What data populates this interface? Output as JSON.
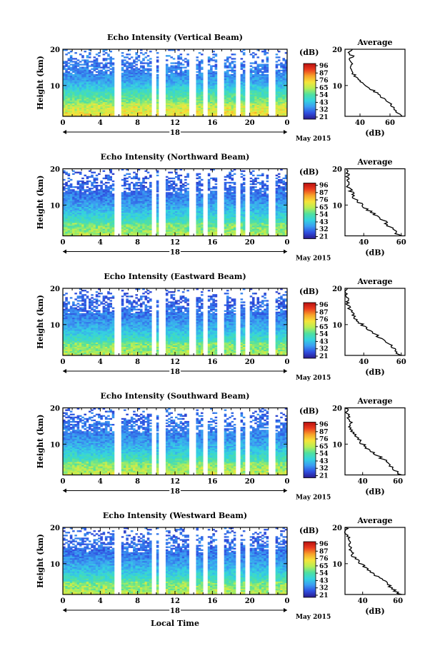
{
  "figure": {
    "date_label": "May 2015",
    "xlabel": "Local Time",
    "ylabel": "Height (km)",
    "colorbar_unit": "(dB)",
    "colorbar_ticks": [
      "96",
      "87",
      "76",
      "65",
      "54",
      "43",
      "32",
      "21"
    ],
    "colorbar_range": [
      21,
      96
    ],
    "average_title": "Average",
    "average_xlabel": "(dB)",
    "gap_hours": [
      5.9,
      9.8,
      10.6,
      13.9,
      15.3,
      16.9,
      18.7,
      19.8,
      22.4
    ],
    "colors": {
      "cmap": [
        "#2a1a8c",
        "#2f4fe0",
        "#3a9cf2",
        "#34d3e0",
        "#4fe0a0",
        "#b6ee55",
        "#f6e43a",
        "#f7a22a",
        "#ea3b1e",
        "#b80f10"
      ]
    }
  },
  "chart_data": [
    {
      "type": "heatmap",
      "title": "Echo Intensity (Vertical Beam)",
      "day_label": "18",
      "x_ticks": [
        "0",
        "4",
        "8",
        "12",
        "16",
        "20",
        "0"
      ],
      "y_ticks": [
        "20",
        "10"
      ],
      "xlim": [
        0,
        24
      ],
      "ylim": [
        1.5,
        20
      ],
      "profile_levels_km": [
        1.5,
        2,
        3,
        4,
        5,
        6,
        7,
        8,
        9,
        10,
        11,
        12,
        13,
        14,
        15,
        16,
        17,
        18,
        19,
        20
      ],
      "profile_db": [
        68,
        66,
        64,
        62,
        60,
        57,
        54,
        51,
        47,
        43,
        40,
        38,
        36,
        35,
        34,
        34,
        33,
        35,
        33,
        34
      ],
      "avg_x_ticks": [
        "40",
        "60"
      ],
      "avg_xlim": [
        30,
        70
      ]
    },
    {
      "type": "heatmap",
      "title": "Echo Intensity (Northward Beam)",
      "day_label": "18",
      "x_ticks": [
        "0",
        "4",
        "8",
        "12",
        "16",
        "20",
        "0"
      ],
      "y_ticks": [
        "20",
        "10"
      ],
      "xlim": [
        0,
        24
      ],
      "ylim": [
        1.5,
        20
      ],
      "profile_levels_km": [
        1.5,
        2,
        3,
        4,
        5,
        6,
        7,
        8,
        9,
        10,
        11,
        12,
        13,
        14,
        15,
        16,
        17,
        18,
        19,
        20
      ],
      "profile_db": [
        60,
        58,
        56,
        54,
        52,
        50,
        47,
        44,
        41,
        39,
        37,
        35,
        34,
        33,
        32,
        31,
        31,
        32,
        31,
        30
      ],
      "avg_x_ticks": [
        "40",
        "60"
      ],
      "avg_xlim": [
        30,
        62
      ]
    },
    {
      "type": "heatmap",
      "title": "Echo Intensity (Eastward Beam)",
      "day_label": "18",
      "x_ticks": [
        "0",
        "4",
        "8",
        "12",
        "16",
        "20",
        "0"
      ],
      "y_ticks": [
        "20",
        "10"
      ],
      "xlim": [
        0,
        24
      ],
      "ylim": [
        1.5,
        20
      ],
      "profile_levels_km": [
        1.5,
        2,
        3,
        4,
        5,
        6,
        7,
        8,
        9,
        10,
        11,
        12,
        13,
        14,
        15,
        16,
        17,
        18,
        19,
        20
      ],
      "profile_db": [
        60,
        58,
        56,
        55,
        53,
        50,
        47,
        44,
        41,
        39,
        37,
        35,
        34,
        33,
        32,
        31,
        32,
        31,
        31,
        30
      ],
      "avg_x_ticks": [
        "40",
        "60"
      ],
      "avg_xlim": [
        30,
        62
      ]
    },
    {
      "type": "heatmap",
      "title": "Echo Intensity (Southward Beam)",
      "day_label": "18",
      "x_ticks": [
        "0",
        "4",
        "8",
        "12",
        "16",
        "20",
        "0"
      ],
      "y_ticks": [
        "20",
        "10"
      ],
      "xlim": [
        0,
        24
      ],
      "ylim": [
        1.5,
        20
      ],
      "profile_levels_km": [
        1.5,
        2,
        3,
        4,
        5,
        6,
        7,
        8,
        9,
        10,
        11,
        12,
        13,
        14,
        15,
        16,
        17,
        18,
        19,
        20
      ],
      "profile_db": [
        62,
        60,
        58,
        56,
        54,
        51,
        48,
        45,
        42,
        40,
        38,
        36,
        35,
        34,
        33,
        33,
        32,
        32,
        31,
        31
      ],
      "avg_x_ticks": [
        "40",
        "60"
      ],
      "avg_xlim": [
        30,
        64
      ]
    },
    {
      "type": "heatmap",
      "title": "Echo Intensity (Westward Beam)",
      "day_label": "18",
      "x_ticks": [
        "0",
        "4",
        "8",
        "12",
        "16",
        "20",
        "0"
      ],
      "y_ticks": [
        "20",
        "10"
      ],
      "xlim": [
        0,
        24
      ],
      "ylim": [
        1.5,
        20
      ],
      "profile_levels_km": [
        1.5,
        2,
        3,
        4,
        5,
        6,
        7,
        8,
        9,
        10,
        11,
        12,
        13,
        14,
        15,
        16,
        17,
        18,
        19,
        20
      ],
      "profile_db": [
        62,
        60,
        57,
        55,
        53,
        50,
        47,
        44,
        41,
        39,
        37,
        35,
        34,
        33,
        33,
        32,
        32,
        31,
        31,
        31
      ],
      "avg_x_ticks": [
        "40",
        "60"
      ],
      "avg_xlim": [
        30,
        64
      ]
    }
  ]
}
